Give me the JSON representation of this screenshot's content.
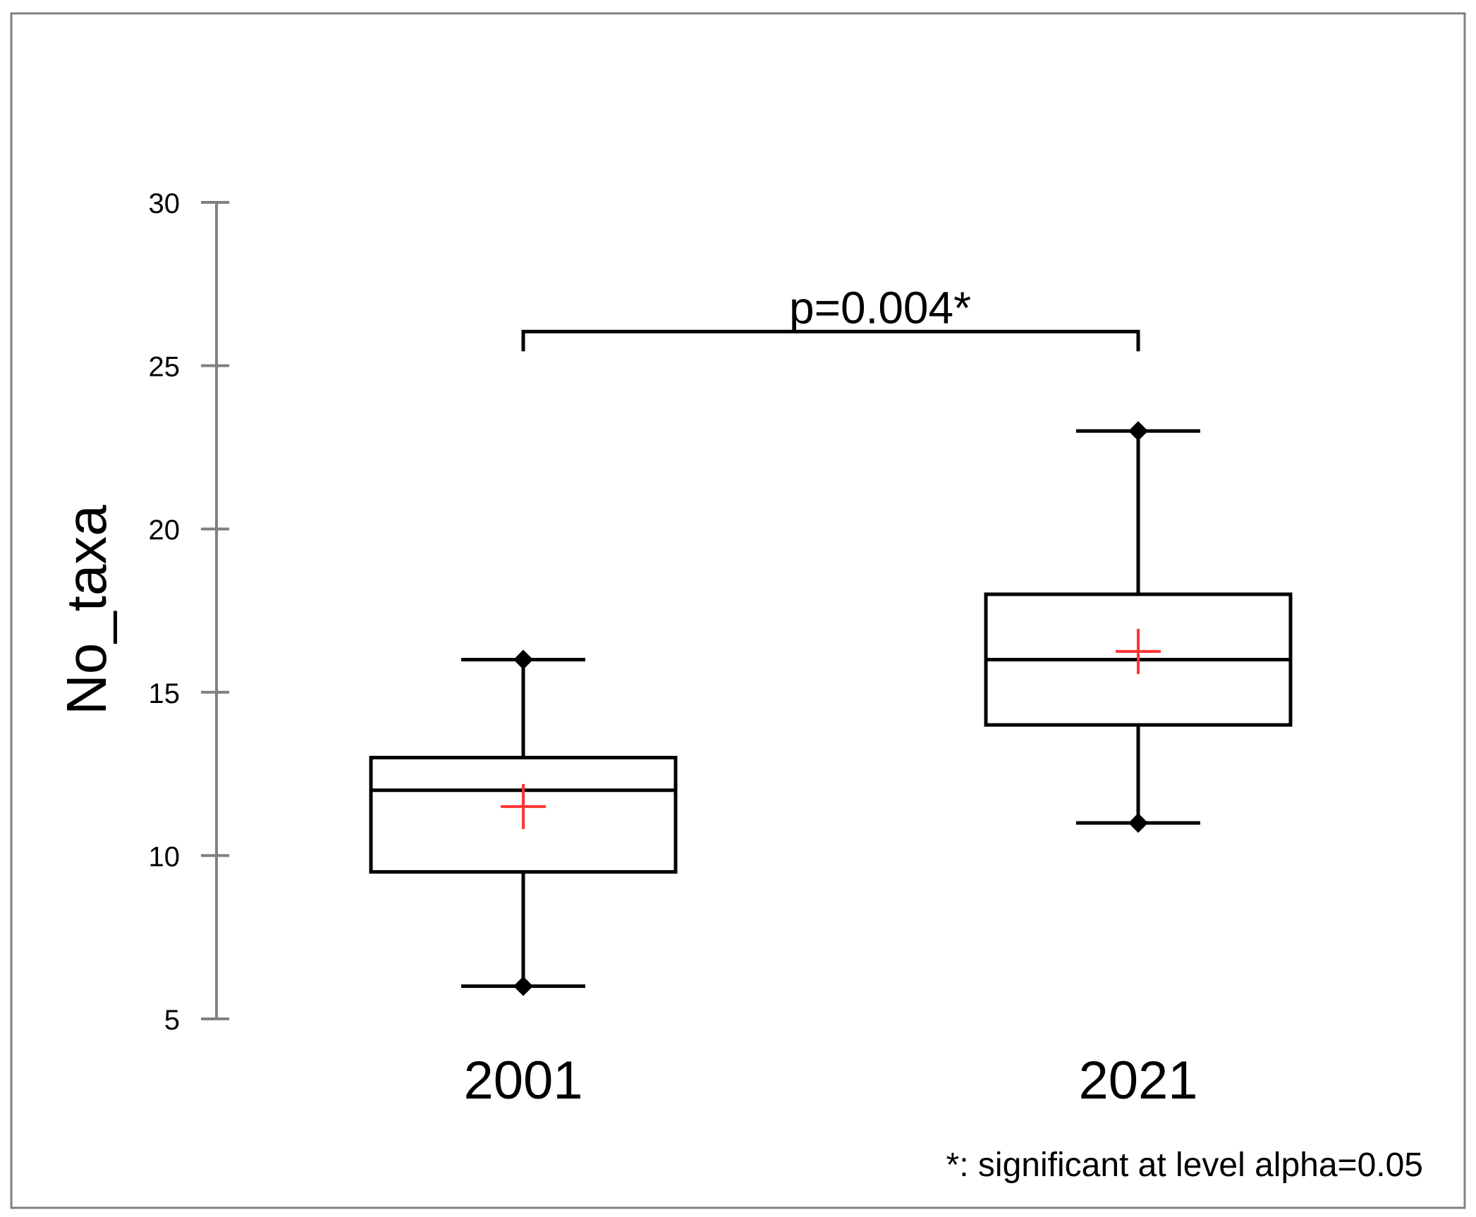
{
  "chart_data": {
    "type": "box",
    "ylabel": "No_taxa",
    "xlabel": "",
    "ylim": [
      5,
      30
    ],
    "yticks": [
      5,
      10,
      15,
      20,
      25,
      30
    ],
    "categories": [
      "2001",
      "2021"
    ],
    "boxes": [
      {
        "category": "2001",
        "min": 6,
        "q1": 9.5,
        "median": 12,
        "q3": 13,
        "max": 16,
        "mean": 11.5
      },
      {
        "category": "2021",
        "min": 11,
        "q1": 14,
        "median": 16,
        "q3": 18,
        "max": 23,
        "mean": 16.25
      }
    ],
    "significance": {
      "label": "p=0.004*",
      "level": 26
    },
    "footnote": "*: significant at level alpha=0.05",
    "colors": {
      "box": "#000000",
      "mean_marker": "#ff3333",
      "axis": "#808080",
      "frame": "#808080"
    }
  }
}
